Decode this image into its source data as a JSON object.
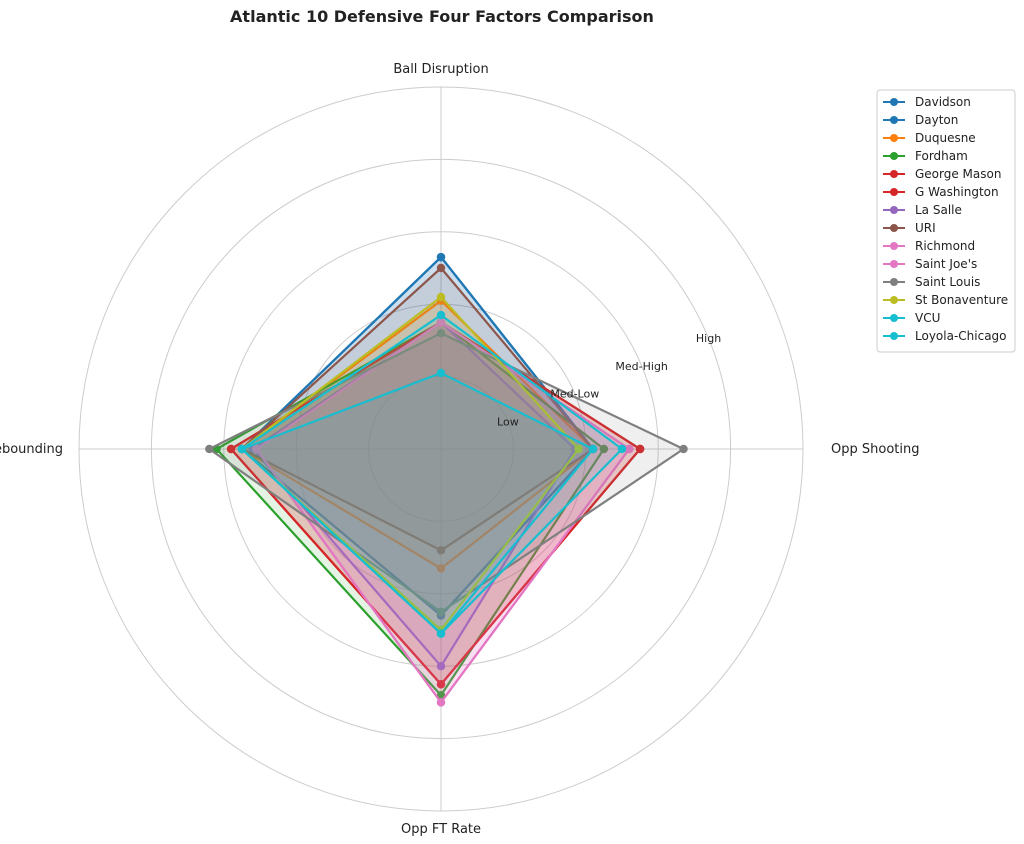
{
  "chart_data": {
    "type": "radar",
    "title": "Atlantic 10 Defensive Four Factors Comparison",
    "axes": [
      "Ball Disruption",
      "Opp Shooting",
      "Opp FT Rate",
      "Def Rebounding"
    ],
    "ring_labels": [
      "Low",
      "Med-Low",
      "Med-High",
      "High"
    ],
    "rmax": 5,
    "grid": true,
    "legend_position": "upper-right",
    "series": [
      {
        "name": "Davidson",
        "color": "#1f77b4",
        "values": [
          2.65,
          2.1,
          2.3,
          2.75
        ]
      },
      {
        "name": "Dayton",
        "color": "#1f77b4",
        "values": [
          2.65,
          2.1,
          2.3,
          2.75
        ]
      },
      {
        "name": "Duquesne",
        "color": "#ff7f0e",
        "values": [
          2.05,
          2.1,
          1.65,
          2.75
        ]
      },
      {
        "name": "Fordham",
        "color": "#2ca02c",
        "values": [
          1.75,
          2.25,
          3.4,
          3.1
        ]
      },
      {
        "name": "George Mason",
        "color": "#d62728",
        "values": [
          1.75,
          2.75,
          3.25,
          2.9
        ]
      },
      {
        "name": "G Washington",
        "color": "#d62728",
        "values": [
          1.75,
          2.75,
          3.25,
          2.9
        ]
      },
      {
        "name": "La Salle",
        "color": "#9467bd",
        "values": [
          1.75,
          1.85,
          3.0,
          2.6
        ]
      },
      {
        "name": "URI",
        "color": "#8c564b",
        "values": [
          2.5,
          2.1,
          1.4,
          2.75
        ]
      },
      {
        "name": "Richmond",
        "color": "#e377c2",
        "values": [
          1.75,
          2.6,
          3.5,
          2.55
        ]
      },
      {
        "name": "Saint Joe's",
        "color": "#e377c2",
        "values": [
          1.75,
          2.6,
          3.5,
          2.55
        ]
      },
      {
        "name": "Saint Louis",
        "color": "#7f7f7f",
        "values": [
          1.6,
          3.35,
          2.25,
          3.2
        ]
      },
      {
        "name": "St Bonaventure",
        "color": "#bcbd22",
        "values": [
          2.1,
          1.9,
          2.5,
          2.75
        ]
      },
      {
        "name": "VCU",
        "color": "#17becf",
        "values": [
          1.85,
          2.5,
          2.55,
          2.75
        ]
      },
      {
        "name": "Loyola-Chicago",
        "color": "#17becf",
        "values": [
          1.05,
          2.1,
          2.55,
          2.75
        ]
      }
    ]
  }
}
